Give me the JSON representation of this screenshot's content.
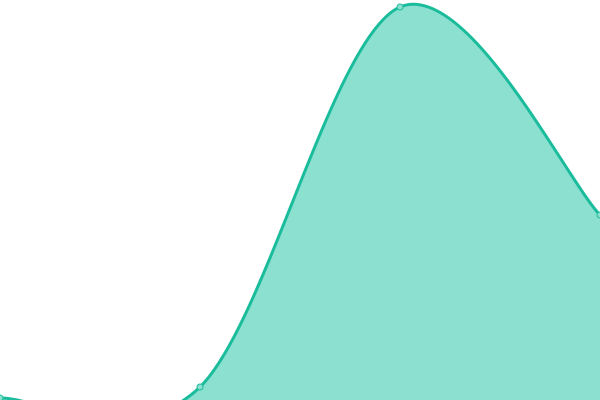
{
  "chart_data": {
    "type": "area",
    "title": "",
    "xlabel": "",
    "ylabel": "",
    "x": [
      0,
      1,
      2,
      3
    ],
    "series": [
      {
        "values": [
          0.5,
          3.25,
          98.25,
          46.25
        ]
      }
    ],
    "xlim": [
      0,
      3
    ],
    "ylim": [
      0,
      100
    ],
    "grid": false,
    "axes_visible": false,
    "smooth": true,
    "colors": {
      "line": "#1abc9c",
      "fill": "#8be0d0",
      "point": "#8be0d0"
    }
  }
}
